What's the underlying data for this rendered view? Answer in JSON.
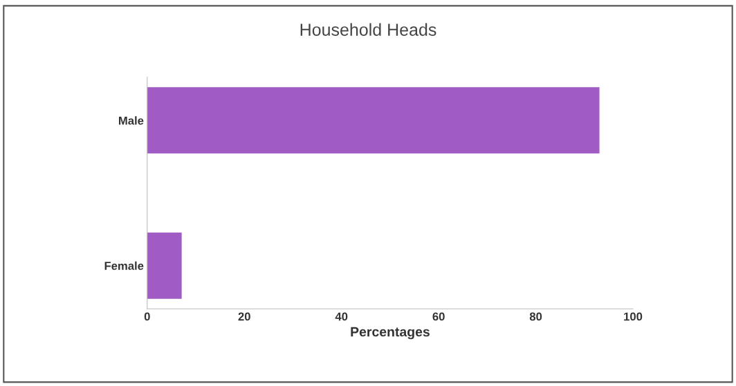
{
  "chart_data": {
    "type": "bar",
    "orientation": "horizontal",
    "title": "Household Heads",
    "xlabel": "Percentages",
    "categories": [
      "Male",
      "Female"
    ],
    "values": [
      93,
      7
    ],
    "color": "#a05cc4",
    "xlim": [
      0,
      100
    ],
    "xticks": [
      0,
      20,
      40,
      60,
      80,
      100
    ],
    "grid": false
  }
}
